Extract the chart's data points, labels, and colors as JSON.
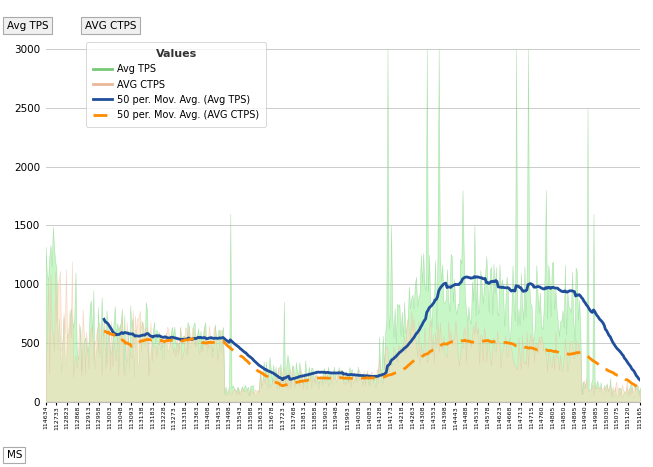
{
  "x_labels": [
    "114634",
    "112733",
    "112823",
    "112868",
    "112913",
    "112958",
    "113003",
    "113048",
    "113093",
    "113138",
    "113183",
    "113228",
    "113273",
    "113318",
    "113363",
    "113408",
    "113453",
    "113498",
    "113543",
    "113588",
    "113633",
    "113678",
    "113723",
    "113768",
    "113813",
    "113858",
    "113903",
    "113948",
    "113993",
    "114038",
    "114083",
    "114128",
    "114173",
    "114218",
    "114263",
    "114308",
    "114353",
    "114398",
    "114443",
    "114488",
    "114533",
    "114578",
    "114623",
    "114668",
    "114713",
    "114715",
    "114760",
    "114805",
    "114850",
    "114895",
    "114940",
    "114985",
    "115030",
    "115075",
    "115120",
    "115165"
  ],
  "yticks": [
    0,
    500,
    1000,
    1500,
    2000,
    2500,
    3000
  ],
  "ylim": [
    0,
    3100
  ],
  "legend_title": "Values",
  "color_tps": "#90EE90",
  "color_ctps": "#FFDAB9",
  "color_tps_edge": "#78c878",
  "color_ctps_edge": "#e8b898",
  "color_ma_tps": "#1f4e9a",
  "color_ma_ctps": "#FF8C00",
  "background_color": "#ffffff",
  "grid_color": "#cccccc",
  "tab_labels": [
    "Avg TPS",
    "AVG CTPS"
  ],
  "xlabel": "MS",
  "legend_labels": [
    "Avg TPS",
    "AVG CTPS",
    "50 per. Mov. Avg. (Avg TPS)",
    "50 per. Mov. Avg. (AVG CTPS)"
  ]
}
